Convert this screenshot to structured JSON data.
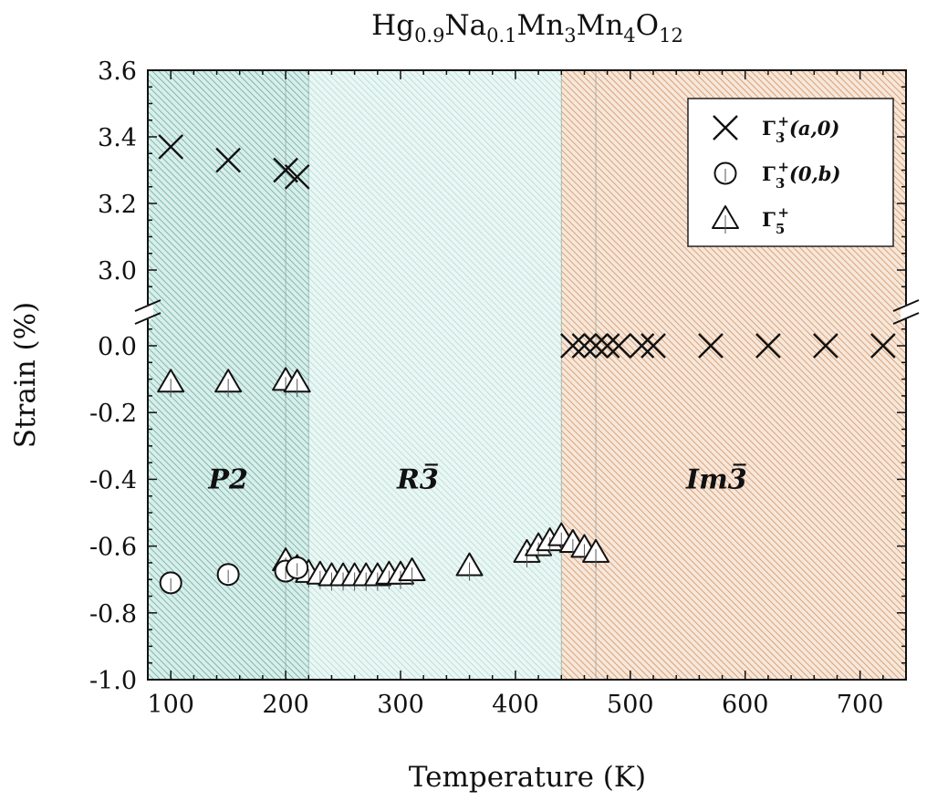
{
  "chart_data": {
    "type": "scatter",
    "title": "Hg0.9Na0.1Mn3Mn4O12",
    "xlabel": "Temperature (K)",
    "ylabel": "Strain (%)",
    "xlim": [
      80,
      740
    ],
    "xticks": [
      "100",
      "200",
      "300",
      "400",
      "500",
      "600",
      "700"
    ],
    "y_axis_break": true,
    "upper_ylim": [
      2.9,
      3.6
    ],
    "upper_yticks": [
      "3.0",
      "3.2",
      "3.4",
      "3.6"
    ],
    "lower_ylim": [
      -1.0,
      0.1
    ],
    "lower_yticks": [
      "-1.0",
      "-0.8",
      "-0.6",
      "-0.4",
      "-0.2",
      "0.0"
    ],
    "legend_position": "top-right",
    "phases": [
      {
        "label": "P2",
        "x_range": [
          80,
          220
        ],
        "color": "#7fbfb4"
      },
      {
        "label": "R3̄",
        "x_range": [
          220,
          440
        ],
        "color": "#a8dcd3"
      },
      {
        "label": "Im3̄",
        "x_range": [
          440,
          740
        ],
        "color": "#d9965f"
      }
    ],
    "series": [
      {
        "name": "Γ3+(a,0)",
        "marker": "x",
        "points": [
          [
            100,
            3.37
          ],
          [
            150,
            3.33
          ],
          [
            200,
            3.3
          ],
          [
            210,
            3.28
          ],
          [
            450,
            0.0
          ],
          [
            460,
            0.0
          ],
          [
            470,
            0.0
          ],
          [
            480,
            0.0
          ],
          [
            490,
            0.0
          ],
          [
            510,
            0.0
          ],
          [
            520,
            0.0
          ],
          [
            570,
            0.0
          ],
          [
            620,
            0.0
          ],
          [
            670,
            0.0
          ],
          [
            720,
            0.0
          ]
        ]
      },
      {
        "name": "Γ3+(0,b)",
        "marker": "circle",
        "points": [
          [
            100,
            -0.71
          ],
          [
            150,
            -0.685
          ],
          [
            200,
            -0.675
          ],
          [
            210,
            -0.665
          ]
        ]
      },
      {
        "name": "Γ5+",
        "marker": "triangle",
        "points": [
          [
            100,
            -0.11
          ],
          [
            150,
            -0.11
          ],
          [
            200,
            -0.105
          ],
          [
            210,
            -0.11
          ],
          [
            200,
            -0.645
          ],
          [
            210,
            -0.665
          ],
          [
            220,
            -0.68
          ],
          [
            230,
            -0.685
          ],
          [
            240,
            -0.69
          ],
          [
            250,
            -0.69
          ],
          [
            260,
            -0.69
          ],
          [
            270,
            -0.69
          ],
          [
            280,
            -0.69
          ],
          [
            290,
            -0.685
          ],
          [
            300,
            -0.685
          ],
          [
            310,
            -0.675
          ],
          [
            360,
            -0.66
          ],
          [
            410,
            -0.62
          ],
          [
            420,
            -0.6
          ],
          [
            430,
            -0.585
          ],
          [
            440,
            -0.57
          ],
          [
            450,
            -0.59
          ],
          [
            460,
            -0.605
          ],
          [
            470,
            -0.62
          ]
        ]
      }
    ]
  }
}
